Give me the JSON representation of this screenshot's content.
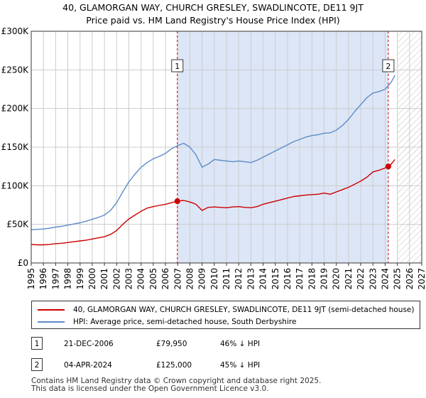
{
  "header": {
    "title_line1": "40, GLAMORGAN WAY, CHURCH GRESLEY, SWADLINCOTE, DE11 9JT",
    "title_line2": "Price paid vs. HM Land Registry's House Price Index (HPI)"
  },
  "chart_data": {
    "type": "line",
    "title": "40, GLAMORGAN WAY, CHURCH GRESLEY, SWADLINCOTE, DE11 9JT",
    "subtitle": "Price paid vs. HM Land Registry's House Price Index (HPI)",
    "xlim": [
      1995,
      2027
    ],
    "ylim": [
      0,
      300000
    ],
    "x_ticks": [
      1995,
      1996,
      1997,
      1998,
      1999,
      2000,
      2001,
      2002,
      2003,
      2004,
      2005,
      2006,
      2007,
      2008,
      2009,
      2010,
      2011,
      2012,
      2013,
      2014,
      2015,
      2016,
      2017,
      2018,
      2019,
      2020,
      2021,
      2022,
      2023,
      2024,
      2025,
      2026,
      2027
    ],
    "y_ticks": [
      {
        "value": 0,
        "label": "£0"
      },
      {
        "value": 50000,
        "label": "£50K"
      },
      {
        "value": 100000,
        "label": "£100K"
      },
      {
        "value": 150000,
        "label": "£150K"
      },
      {
        "value": 200000,
        "label": "£200K"
      },
      {
        "value": 250000,
        "label": "£250K"
      },
      {
        "value": 300000,
        "label": "£300K"
      }
    ],
    "grid": true,
    "shaded_region": {
      "from": 2006.97,
      "to": 2024.26,
      "color": "#dde6f7"
    },
    "hatched_region": {
      "from": 2025.0,
      "to": 2027
    },
    "series": [
      {
        "name": "40, GLAMORGAN WAY, CHURCH GRESLEY, SWADLINCOTE, DE11 9JT (semi-detached house)",
        "color": "#cc0000",
        "x": [
          1995,
          1995.5,
          1996,
          1996.5,
          1997,
          1997.5,
          1998,
          1998.5,
          1999,
          1999.5,
          2000,
          2000.5,
          2001,
          2001.5,
          2002,
          2002.5,
          2003,
          2003.5,
          2004,
          2004.5,
          2005,
          2005.5,
          2006,
          2006.5,
          2006.97,
          2007.5,
          2008,
          2008.5,
          2009,
          2009.5,
          2010,
          2010.5,
          2011,
          2011.5,
          2012,
          2012.5,
          2013,
          2013.5,
          2014,
          2014.5,
          2015,
          2015.5,
          2016,
          2016.5,
          2017,
          2017.5,
          2018,
          2018.5,
          2019,
          2019.5,
          2020,
          2020.5,
          2021,
          2021.5,
          2022,
          2022.5,
          2023,
          2023.5,
          2024,
          2024.26,
          2024.5,
          2024.8
        ],
        "values": [
          24000,
          23500,
          23500,
          24000,
          25000,
          25500,
          26500,
          27500,
          28500,
          29500,
          31000,
          32500,
          34000,
          37000,
          42000,
          50000,
          57000,
          62000,
          67000,
          71000,
          73000,
          74500,
          76000,
          78000,
          79950,
          81000,
          79000,
          76000,
          68000,
          72000,
          72500,
          72000,
          71500,
          72500,
          73000,
          72000,
          71500,
          73000,
          76000,
          78000,
          80000,
          82000,
          84000,
          86000,
          87000,
          88000,
          88500,
          89000,
          90500,
          89000,
          92000,
          95000,
          98000,
          102000,
          106000,
          111000,
          118000,
          120000,
          123000,
          125000,
          128000,
          134000
        ]
      },
      {
        "name": "HPI: Average price, semi-detached house, South Derbyshire",
        "color": "#5b8cc8",
        "x": [
          1995,
          1995.5,
          1996,
          1996.5,
          1997,
          1997.5,
          1998,
          1998.5,
          1999,
          1999.5,
          2000,
          2000.5,
          2001,
          2001.5,
          2002,
          2002.5,
          2003,
          2003.5,
          2004,
          2004.5,
          2005,
          2005.5,
          2006,
          2006.5,
          2007,
          2007.5,
          2008,
          2008.5,
          2009,
          2009.5,
          2010,
          2010.5,
          2011,
          2011.5,
          2012,
          2012.5,
          2013,
          2013.5,
          2014,
          2014.5,
          2015,
          2015.5,
          2016,
          2016.5,
          2017,
          2017.5,
          2018,
          2018.5,
          2019,
          2019.5,
          2020,
          2020.5,
          2021,
          2021.5,
          2022,
          2022.5,
          2023,
          2023.5,
          2024,
          2024.5,
          2024.8
        ],
        "values": [
          43000,
          43500,
          44000,
          45000,
          46500,
          47500,
          49000,
          50500,
          52000,
          54000,
          56500,
          59000,
          62000,
          68000,
          78000,
          92000,
          105000,
          115000,
          124000,
          130000,
          135000,
          138000,
          142000,
          148000,
          152000,
          155000,
          150000,
          140000,
          124000,
          128000,
          134000,
          133000,
          132000,
          131000,
          132000,
          131000,
          130000,
          133000,
          137000,
          141000,
          145000,
          149000,
          153000,
          157000,
          160000,
          163000,
          165000,
          166000,
          168000,
          168500,
          172000,
          178000,
          186000,
          196000,
          205000,
          214000,
          220000,
          222000,
          225000,
          234000,
          243000
        ]
      }
    ],
    "annotations": [
      {
        "label": "1",
        "x": 2006.97,
        "value": 79950
      },
      {
        "label": "2",
        "x": 2024.26,
        "value": 125000
      }
    ]
  },
  "legend": {
    "items": [
      {
        "label": "40, GLAMORGAN WAY, CHURCH GRESLEY, SWADLINCOTE, DE11 9JT (semi-detached house)",
        "color": "#cc0000"
      },
      {
        "label": "HPI: Average price, semi-detached house, South Derbyshire",
        "color": "#5b8cc8"
      }
    ]
  },
  "sales": [
    {
      "num": "1",
      "date": "21-DEC-2006",
      "price": "£79,950",
      "hpi": "46% ↓ HPI"
    },
    {
      "num": "2",
      "date": "04-APR-2024",
      "price": "£125,000",
      "hpi": "45% ↓ HPI"
    }
  ],
  "footer": {
    "line1": "Contains HM Land Registry data © Crown copyright and database right 2025.",
    "line2": "This data is licensed under the Open Government Licence v3.0."
  }
}
